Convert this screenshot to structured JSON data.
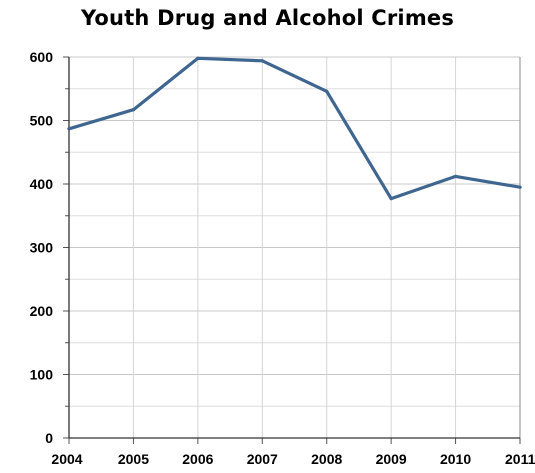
{
  "chart_data": {
    "type": "line",
    "title": "Youth Drug and Alcohol Crimes",
    "xlabel": "",
    "ylabel": "",
    "categories": [
      "2004",
      "2005",
      "2006",
      "2007",
      "2008",
      "2009",
      "2010",
      "2011"
    ],
    "series": [
      {
        "values": [
          487,
          517,
          598,
          594,
          546,
          377,
          412,
          395
        ],
        "color": "#3e6691"
      }
    ],
    "ylim": [
      0,
      600
    ],
    "yticks": [
      0,
      100,
      200,
      300,
      400,
      500,
      600
    ],
    "ytick_labels": [
      "0",
      "100",
      "200",
      "300",
      "400",
      "500",
      "600"
    ],
    "minor_ytick_step": 50,
    "grid": true,
    "legend": "none"
  }
}
